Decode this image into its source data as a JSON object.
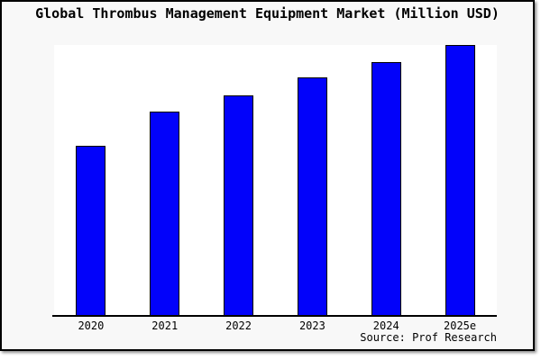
{
  "chart_data": {
    "type": "bar",
    "title": "Global Thrombus Management Equipment Market (Million USD)",
    "categories": [
      "2020",
      "2021",
      "2022",
      "2023",
      "2024",
      "2025e"
    ],
    "values": [
      62.9,
      75.4,
      81.5,
      87.9,
      93.8,
      100
    ],
    "value_scale_note": "no y-axis shown in chart; values are bar heights relative to 2025e = 100",
    "xlabel": "",
    "ylabel": "",
    "ylim": [
      0,
      100
    ],
    "y_axis_visible": false,
    "gridlines": false,
    "legend": "none",
    "source": "Source: Prof Research"
  },
  "colors": {
    "bar_fill": "#0202FA",
    "bar_border": "#000000",
    "canvas_background": "#F8F8F8",
    "plot_background": "#FFFFFF",
    "frame_border": "#000000",
    "text": "#000000"
  }
}
